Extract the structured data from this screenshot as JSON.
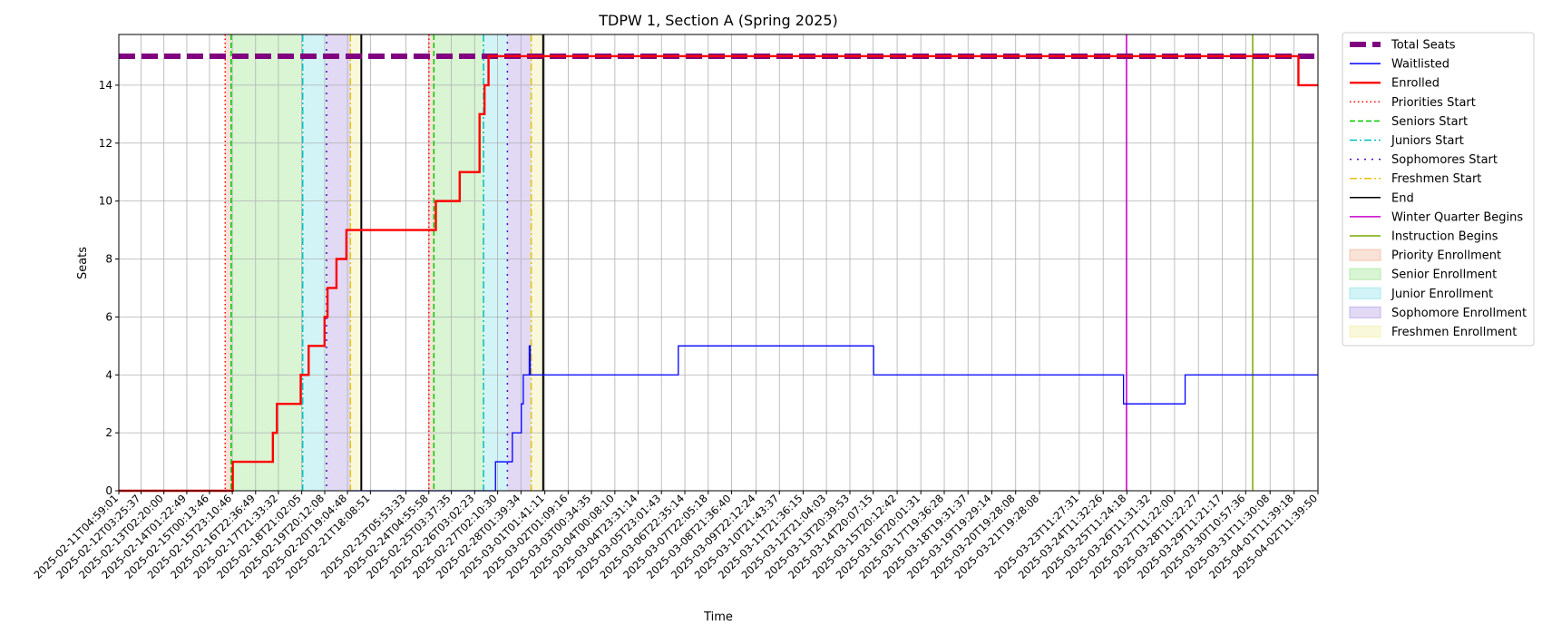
{
  "chart_data": {
    "type": "line",
    "title": "TDPW 1, Section A (Spring 2025)",
    "xlabel": "Time",
    "ylabel": "Seats",
    "ylim": [
      0,
      15.75
    ],
    "yticks": [
      0,
      2,
      4,
      6,
      8,
      10,
      12,
      14
    ],
    "grid": true,
    "legend_position": "outside-right",
    "x_domain": [
      "2025-02-11T04:59:01",
      "2025-04-02T11:39:50"
    ],
    "xticks": [
      "2025-02-11T04:59:01",
      "2025-02-12T03:25:37",
      "2025-02-13T02:20:00",
      "2025-02-14T01:22:49",
      "2025-02-15T00:13:46",
      "2025-02-15T23:10:46",
      "2025-02-16T22:36:49",
      "2025-02-17T21:33:32",
      "2025-02-18T21:02:05",
      "2025-02-19T20:12:08",
      "2025-02-20T19:04:48",
      "2025-02-21T18:08:51",
      "2025-02-23T05:53:33",
      "2025-02-24T04:55:58",
      "2025-02-25T03:37:35",
      "2025-02-26T03:02:23",
      "2025-02-27T02:10:30",
      "2025-02-28T01:39:34",
      "2025-03-01T01:41:11",
      "2025-03-02T01:09:16",
      "2025-03-03T00:34:35",
      "2025-03-04T00:08:10",
      "2025-03-04T23:31:14",
      "2025-03-05T23:01:43",
      "2025-03-06T22:35:14",
      "2025-03-07T22:05:18",
      "2025-03-08T21:36:40",
      "2025-03-09T22:12:24",
      "2025-03-10T21:43:37",
      "2025-03-11T21:36:15",
      "2025-03-12T21:04:03",
      "2025-03-13T20:39:53",
      "2025-03-14T20:07:15",
      "2025-03-15T20:12:42",
      "2025-03-16T20:01:31",
      "2025-03-17T19:36:28",
      "2025-03-18T19:31:37",
      "2025-03-19T19:29:14",
      "2025-03-20T19:28:08",
      "2025-03-21T19:28:08",
      "2025-03-23T11:27:31",
      "2025-03-24T11:32:26",
      "2025-03-25T11:24:18",
      "2025-03-26T11:31:32",
      "2025-03-27T11:22:00",
      "2025-03-28T11:22:27",
      "2025-03-29T11:21:17",
      "2025-03-30T10:57:36",
      "2025-03-31T11:30:08",
      "2025-04-01T11:39:18",
      "2025-04-02T11:39:50"
    ],
    "series": [
      {
        "name": "Total Seats",
        "color": "#800080",
        "style": "dashed-thick",
        "points": [
          [
            "2025-02-11T04:59:01",
            15
          ],
          [
            "2025-04-02T11:39:50",
            15
          ]
        ]
      },
      {
        "name": "Waitlisted",
        "color": "#0000ff",
        "style": "step",
        "points": [
          [
            "2025-02-20T19:45:00",
            0
          ],
          [
            "2025-02-27T00:00:00",
            0
          ],
          [
            "2025-02-27T00:00:00",
            1
          ],
          [
            "2025-02-27T17:00:00",
            1
          ],
          [
            "2025-02-27T17:00:00",
            2
          ],
          [
            "2025-02-28T02:00:00",
            2
          ],
          [
            "2025-02-28T02:00:00",
            3
          ],
          [
            "2025-02-28T04:00:00",
            3
          ],
          [
            "2025-02-28T04:00:00",
            4
          ],
          [
            "2025-02-28T10:00:00",
            4
          ],
          [
            "2025-02-28T10:00:00",
            5
          ],
          [
            "2025-02-28T11:00:00",
            5
          ],
          [
            "2025-02-28T11:00:00",
            4
          ],
          [
            "2025-03-06T16:00:00",
            4
          ],
          [
            "2025-03-06T16:00:00",
            5
          ],
          [
            "2025-03-14T20:30:00",
            5
          ],
          [
            "2025-03-14T20:30:00",
            4
          ],
          [
            "2025-03-25T08:00:00",
            4
          ],
          [
            "2025-03-25T08:00:00",
            3
          ],
          [
            "2025-03-27T22:00:00",
            3
          ],
          [
            "2025-03-27T22:00:00",
            4
          ],
          [
            "2025-04-02T11:39:50",
            4
          ]
        ]
      },
      {
        "name": "Enrolled",
        "color": "#ff0000",
        "style": "step-thick",
        "points": [
          [
            "2025-02-11T04:59:01",
            0
          ],
          [
            "2025-02-15T23:40:00",
            0
          ],
          [
            "2025-02-15T23:40:00",
            1
          ],
          [
            "2025-02-17T16:00:00",
            1
          ],
          [
            "2025-02-17T16:00:00",
            2
          ],
          [
            "2025-02-17T20:00:00",
            2
          ],
          [
            "2025-02-17T20:00:00",
            3
          ],
          [
            "2025-02-18T20:00:00",
            3
          ],
          [
            "2025-02-18T20:00:00",
            4
          ],
          [
            "2025-02-19T04:00:00",
            4
          ],
          [
            "2025-02-19T04:00:00",
            5
          ],
          [
            "2025-02-19T20:00:00",
            5
          ],
          [
            "2025-02-19T20:00:00",
            6
          ],
          [
            "2025-02-19T23:00:00",
            6
          ],
          [
            "2025-02-19T23:00:00",
            7
          ],
          [
            "2025-02-20T08:00:00",
            7
          ],
          [
            "2025-02-20T08:00:00",
            8
          ],
          [
            "2025-02-20T18:00:00",
            8
          ],
          [
            "2025-02-20T18:00:00",
            9
          ],
          [
            "2025-02-24T12:00:00",
            9
          ],
          [
            "2025-02-24T12:00:00",
            10
          ],
          [
            "2025-02-25T12:00:00",
            10
          ],
          [
            "2025-02-25T12:00:00",
            11
          ],
          [
            "2025-02-26T08:00:00",
            11
          ],
          [
            "2025-02-26T08:00:00",
            13
          ],
          [
            "2025-02-26T13:00:00",
            13
          ],
          [
            "2025-02-26T13:00:00",
            14
          ],
          [
            "2025-02-26T17:00:00",
            14
          ],
          [
            "2025-02-26T17:00:00",
            15
          ],
          [
            "2025-04-01T16:00:00",
            15
          ],
          [
            "2025-04-01T16:00:00",
            14
          ],
          [
            "2025-04-02T11:39:50",
            14
          ]
        ]
      }
    ],
    "vlines": [
      {
        "name": "Priorities Start",
        "color": "#ff0000",
        "style": "dotted",
        "dates": [
          "2025-02-15T16:00:00",
          "2025-02-24T05:00:00"
        ]
      },
      {
        "name": "Seniors Start",
        "color": "#00cc00",
        "style": "dashed",
        "dates": [
          "2025-02-15T22:00:00",
          "2025-02-24T10:00:00"
        ]
      },
      {
        "name": "Juniors Start",
        "color": "#00bfbf",
        "style": "dashdot",
        "dates": [
          "2025-02-18T22:00:00",
          "2025-02-26T12:00:00"
        ]
      },
      {
        "name": "Sophomores Start",
        "color": "#5500cc",
        "style": "dashdotted",
        "dates": [
          "2025-02-19T22:00:00",
          "2025-02-27T12:00:00"
        ]
      },
      {
        "name": "Freshmen Start",
        "color": "#e6c200",
        "style": "dashdot",
        "dates": [
          "2025-02-20T22:00:00",
          "2025-02-28T12:00:00"
        ]
      },
      {
        "name": "End",
        "color": "#000000",
        "style": "solid",
        "dates": [
          "2025-02-21T09:00:00",
          "2025-03-01T00:00:00"
        ]
      },
      {
        "name": "Winter Quarter Begins",
        "color": "#cc00cc",
        "style": "solid",
        "dates": [
          "2025-03-25T11:00:00"
        ]
      },
      {
        "name": "Instruction Begins",
        "color": "#77aa00",
        "style": "solid",
        "dates": [
          "2025-03-30T18:00:00"
        ]
      }
    ],
    "spans": [
      {
        "name": "Priority Enrollment",
        "color": "#f4c6b0",
        "ranges": [
          [
            "2025-02-15T16:00:00",
            "2025-02-15T22:00:00"
          ],
          [
            "2025-02-24T05:00:00",
            "2025-02-24T10:00:00"
          ]
        ]
      },
      {
        "name": "Senior Enrollment",
        "color": "#b3ecaa",
        "ranges": [
          [
            "2025-02-15T22:00:00",
            "2025-02-18T22:00:00"
          ],
          [
            "2025-02-24T10:00:00",
            "2025-02-26T12:00:00"
          ]
        ]
      },
      {
        "name": "Junior Enrollment",
        "color": "#a6eaf0",
        "ranges": [
          [
            "2025-02-18T22:00:00",
            "2025-02-19T22:00:00"
          ],
          [
            "2025-02-26T12:00:00",
            "2025-02-27T12:00:00"
          ]
        ]
      },
      {
        "name": "Sophomore Enrollment",
        "color": "#c5b4ec",
        "ranges": [
          [
            "2025-02-19T22:00:00",
            "2025-02-20T22:00:00"
          ],
          [
            "2025-02-27T12:00:00",
            "2025-02-28T12:00:00"
          ]
        ]
      },
      {
        "name": "Freshmen Enrollment",
        "color": "#f5f1b8",
        "ranges": [
          [
            "2025-02-20T22:00:00",
            "2025-02-21T09:00:00"
          ],
          [
            "2025-02-28T12:00:00",
            "2025-03-01T00:00:00"
          ]
        ]
      }
    ],
    "legend": [
      {
        "label": "Total Seats",
        "kind": "line",
        "color": "#800080",
        "style": "dashed-thick"
      },
      {
        "label": "Waitlisted",
        "kind": "line",
        "color": "#0000ff",
        "style": "solid"
      },
      {
        "label": "Enrolled",
        "kind": "line",
        "color": "#ff0000",
        "style": "solid-thick"
      },
      {
        "label": "Priorities Start",
        "kind": "line",
        "color": "#ff0000",
        "style": "dotted"
      },
      {
        "label": "Seniors Start",
        "kind": "line",
        "color": "#00cc00",
        "style": "dashed"
      },
      {
        "label": "Juniors Start",
        "kind": "line",
        "color": "#00bfbf",
        "style": "dashdot"
      },
      {
        "label": "Sophomores Start",
        "kind": "line",
        "color": "#5500cc",
        "style": "dashdotted"
      },
      {
        "label": "Freshmen Start",
        "kind": "line",
        "color": "#e6c200",
        "style": "dashdot"
      },
      {
        "label": "End",
        "kind": "line",
        "color": "#000000",
        "style": "solid"
      },
      {
        "label": "Winter Quarter Begins",
        "kind": "line",
        "color": "#cc00cc",
        "style": "solid"
      },
      {
        "label": "Instruction Begins",
        "kind": "line",
        "color": "#77aa00",
        "style": "solid"
      },
      {
        "label": "Priority Enrollment",
        "kind": "patch",
        "color": "#f4c6b0"
      },
      {
        "label": "Senior Enrollment",
        "kind": "patch",
        "color": "#b3ecaa"
      },
      {
        "label": "Junior Enrollment",
        "kind": "patch",
        "color": "#a6eaf0"
      },
      {
        "label": "Sophomore Enrollment",
        "kind": "patch",
        "color": "#c5b4ec"
      },
      {
        "label": "Freshmen Enrollment",
        "kind": "patch",
        "color": "#f5f1b8"
      }
    ]
  }
}
